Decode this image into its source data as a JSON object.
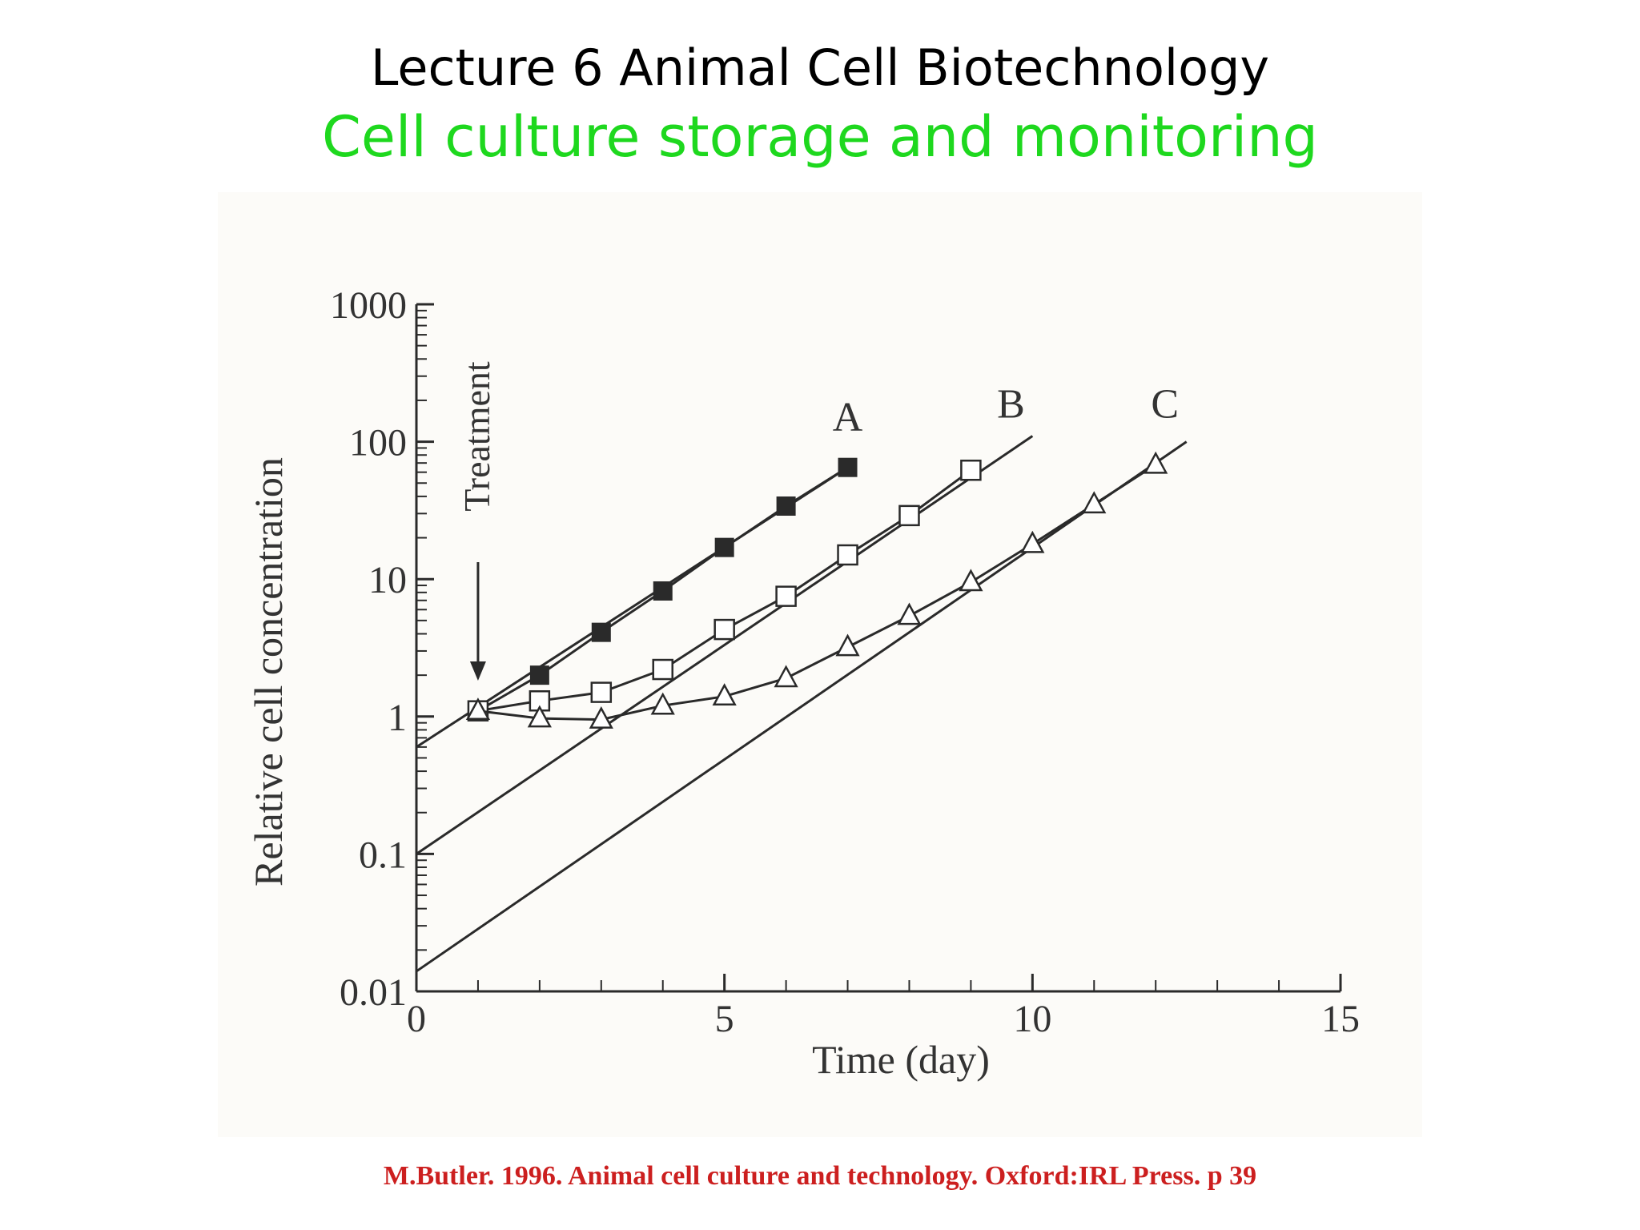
{
  "slide": {
    "title": "Lecture 6 Animal Cell Biotechnology",
    "subtitle": "Cell culture storage and monitoring",
    "citation": "M.Butler.  1996.  Animal cell culture and technology.  Oxford:IRL Press. p 39"
  },
  "colors": {
    "subtitle": "#1ed81e",
    "citation": "#cc1f1f",
    "ink": "#2a2a2a"
  },
  "chart_data": {
    "type": "line",
    "title": "",
    "xlabel": "Time (day)",
    "ylabel": "Relative cell concentration",
    "xlim": [
      0,
      15
    ],
    "ylim": [
      0.01,
      1000
    ],
    "y_scale": "log",
    "x_ticks": [
      "0",
      "5",
      "10",
      "15"
    ],
    "y_ticks": [
      "0.01",
      "0.1",
      "1",
      "10",
      "100",
      "1000"
    ],
    "annotation": "Treatment",
    "annotation_x": 1,
    "series": [
      {
        "name": "A",
        "marker": "filled-square",
        "points": [
          [
            1,
            1.1
          ],
          [
            2,
            2
          ],
          [
            3,
            4.1
          ],
          [
            4,
            8.2
          ],
          [
            5,
            17
          ],
          [
            6,
            34
          ],
          [
            7,
            65
          ]
        ],
        "fit": [
          [
            0,
            0.6
          ],
          [
            7,
            65
          ]
        ]
      },
      {
        "name": "B",
        "marker": "open-square",
        "points": [
          [
            1,
            1.1
          ],
          [
            2,
            1.3
          ],
          [
            3,
            1.5
          ],
          [
            4,
            2.2
          ],
          [
            5,
            4.3
          ],
          [
            6,
            7.5
          ],
          [
            7,
            15
          ],
          [
            8,
            29
          ],
          [
            9,
            62
          ]
        ],
        "fit": [
          [
            0,
            0.1
          ],
          [
            10,
            110
          ]
        ]
      },
      {
        "name": "C",
        "marker": "open-triangle",
        "points": [
          [
            1,
            1.1
          ],
          [
            2,
            0.97
          ],
          [
            3,
            0.95
          ],
          [
            4,
            1.2
          ],
          [
            5,
            1.4
          ],
          [
            6,
            1.9
          ],
          [
            7,
            3.2
          ],
          [
            8,
            5.4
          ],
          [
            9,
            9.5
          ],
          [
            10,
            18
          ],
          [
            11,
            35
          ],
          [
            12,
            68
          ]
        ],
        "fit": [
          [
            0,
            0.014
          ],
          [
            12.5,
            100
          ]
        ]
      }
    ]
  }
}
